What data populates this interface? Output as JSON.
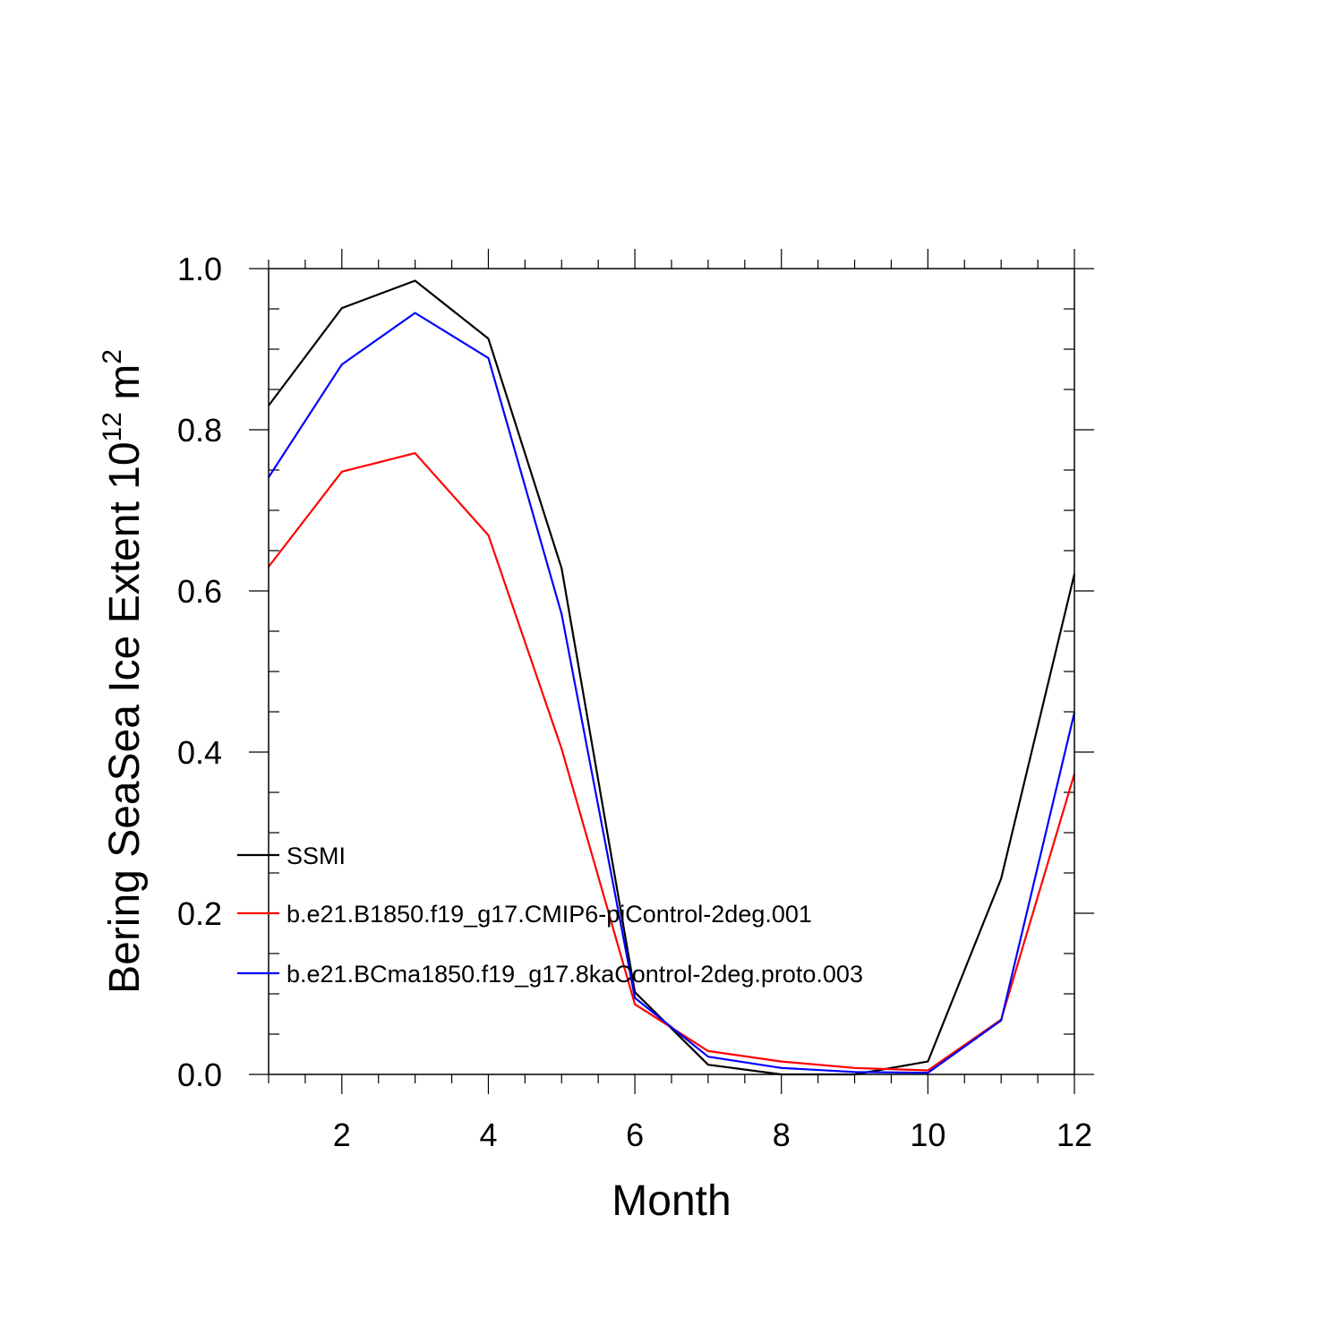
{
  "chart_data": {
    "type": "line",
    "title": "",
    "xlabel": "Month",
    "ylabel": {
      "text": "Bering SeaSea Ice Extent 10",
      "sup": "12",
      "unit": " m",
      "unit_sup": "2"
    },
    "xlim": [
      1,
      12
    ],
    "ylim": [
      0.0,
      1.0
    ],
    "x": [
      1,
      2,
      3,
      4,
      5,
      6,
      7,
      8,
      9,
      10,
      11,
      12
    ],
    "x_ticks": [
      2,
      4,
      6,
      8,
      10,
      12
    ],
    "x_tick_labels": [
      "2",
      "4",
      "6",
      "8",
      "10",
      "12"
    ],
    "y_ticks": [
      0.0,
      0.2,
      0.4,
      0.6,
      0.8,
      1.0
    ],
    "y_tick_labels": [
      "0.0",
      "0.2",
      "0.4",
      "0.6",
      "0.8",
      "1.0"
    ],
    "grid": false,
    "legend_position": "lower-left inside",
    "series": [
      {
        "name": "SSMI",
        "color": "#000000",
        "values": [
          0.83,
          0.951,
          0.985,
          0.913,
          0.628,
          0.102,
          0.012,
          0.0,
          0.0,
          0.016,
          0.243,
          0.621
        ]
      },
      {
        "name": "b.e21.B1850.f19_g17.CMIP6-piControl-2deg.001",
        "color": "#ff0000",
        "values": [
          0.63,
          0.748,
          0.771,
          0.669,
          0.404,
          0.087,
          0.029,
          0.016,
          0.008,
          0.005,
          0.068,
          0.373
        ]
      },
      {
        "name": "b.e21.BCma1850.f19_g17.8kaControl-2deg.proto.003",
        "color": "#0000ff",
        "values": [
          0.741,
          0.881,
          0.945,
          0.889,
          0.571,
          0.095,
          0.022,
          0.008,
          0.003,
          0.002,
          0.067,
          0.449
        ]
      }
    ]
  }
}
